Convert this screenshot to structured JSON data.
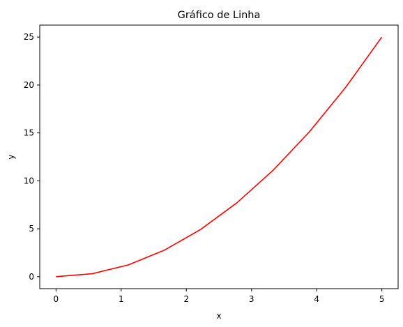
{
  "chart_data": {
    "type": "line",
    "title": "Gráfico de Linha",
    "xlabel": "x",
    "ylabel": "y",
    "xlim": [
      -0.25,
      5.25
    ],
    "ylim": [
      -1.25,
      26.25
    ],
    "x_ticks": [
      0,
      1,
      2,
      3,
      4,
      5
    ],
    "y_ticks": [
      0,
      5,
      10,
      15,
      20,
      25
    ],
    "grid": false,
    "series": [
      {
        "color": "#ff0000",
        "x": [
          0,
          0.556,
          1.111,
          1.667,
          2.222,
          2.778,
          3.333,
          3.889,
          4.444,
          5.0
        ],
        "y": [
          0,
          0.31,
          1.23,
          2.78,
          4.94,
          7.72,
          11.11,
          15.12,
          19.75,
          25.0
        ]
      }
    ]
  }
}
